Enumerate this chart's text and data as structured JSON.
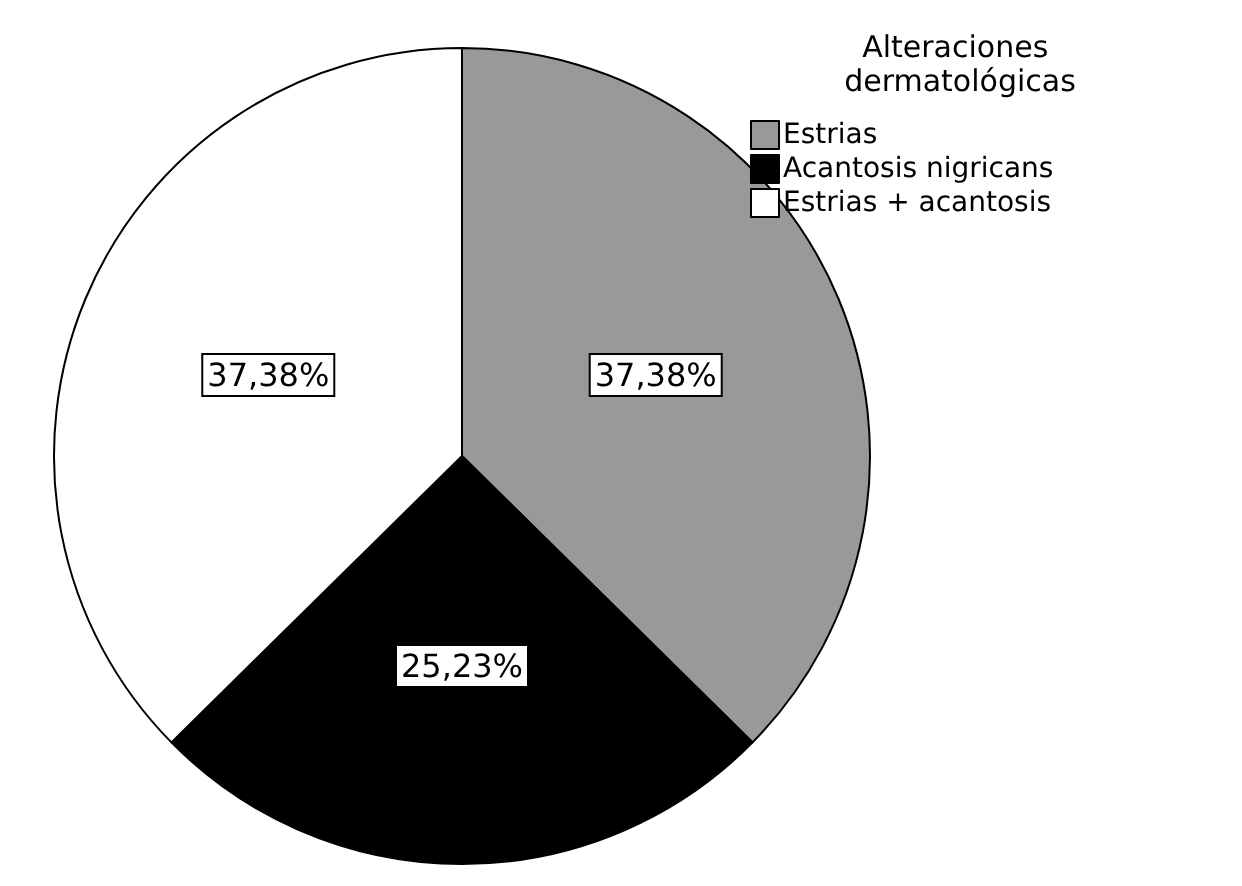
{
  "chart_data": {
    "type": "pie",
    "legend_title": "Alteraciones dermatológicas",
    "legend": "top right",
    "categories": [
      "Estrias",
      "Acantosis nigricans",
      "Estrias + acantosis"
    ],
    "values": [
      37.38,
      25.23,
      37.38
    ],
    "colors": [
      "#999999",
      "#000000",
      "#ffffff"
    ],
    "value_labels": [
      "37,38%",
      "25,23%",
      "37,38%"
    ]
  }
}
